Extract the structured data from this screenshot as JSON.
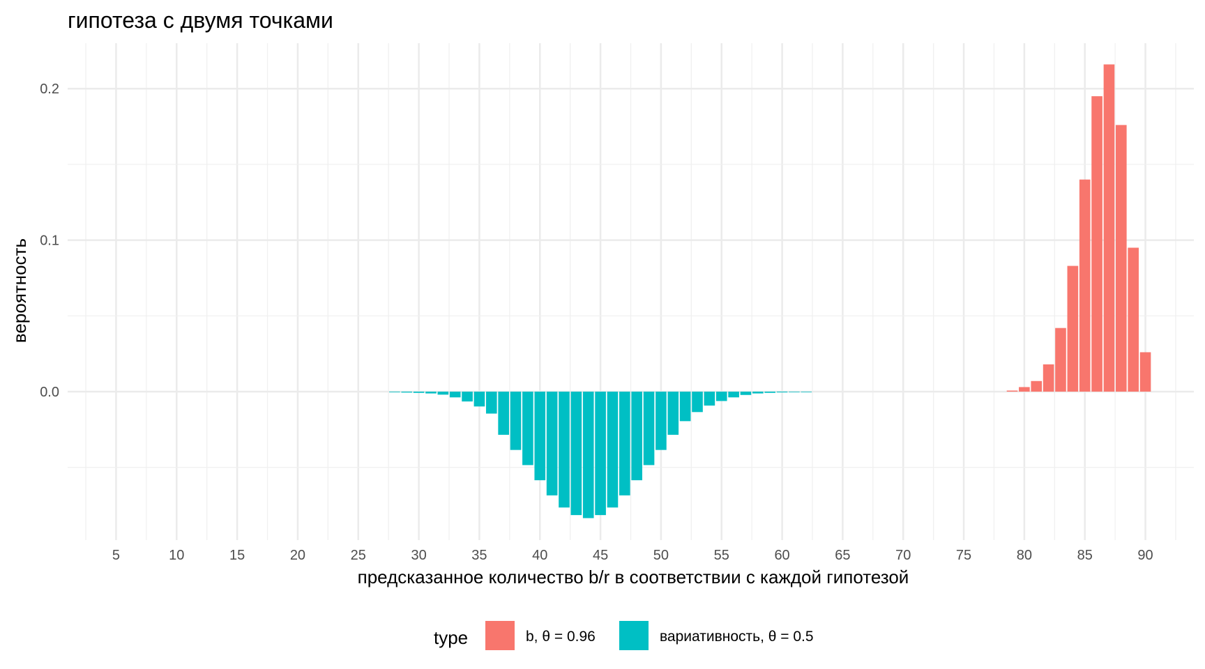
{
  "chart_data": {
    "type": "bar",
    "title": "гипотеза с двумя точками",
    "xlabel": "предсказанное количество b/r в соответствии с каждой гипотезой",
    "ylabel": "вероятность",
    "xlim": [
      1,
      94
    ],
    "ylim": [
      -0.098,
      0.23
    ],
    "x_ticks": [
      5,
      10,
      15,
      20,
      25,
      30,
      35,
      40,
      45,
      50,
      55,
      60,
      65,
      70,
      75,
      80,
      85,
      90
    ],
    "y_ticks": [
      0.0,
      0.1,
      0.2
    ],
    "y_tick_labels": [
      "0.0",
      "0.1",
      "0.2"
    ],
    "grid": true,
    "legend": {
      "title": "type",
      "position": "bottom",
      "entries": [
        {
          "label": "b, θ = 0.96",
          "color": "#F8766D"
        },
        {
          "label": "вариативность, θ = 0.5",
          "color": "#00BFC4"
        }
      ]
    },
    "series": [
      {
        "name": "b, θ = 0.96",
        "color": "#F8766D",
        "x": [
          79,
          80,
          81,
          82,
          83,
          84,
          85,
          86,
          87,
          88,
          89,
          90
        ],
        "values": [
          0.0007,
          0.003,
          0.007,
          0.018,
          0.042,
          0.083,
          0.14,
          0.195,
          0.216,
          0.176,
          0.095,
          0.026
        ]
      },
      {
        "name": "вариативность, θ = 0.5",
        "color": "#00BFC4",
        "x": [
          28,
          29,
          30,
          31,
          32,
          33,
          34,
          35,
          36,
          37,
          38,
          39,
          40,
          41,
          42,
          43,
          44,
          45,
          46,
          47,
          48,
          49,
          50,
          51,
          52,
          53,
          54,
          55,
          56,
          57,
          58,
          59,
          60,
          61,
          62
        ],
        "values": [
          -0.0004,
          -0.0006,
          -0.0008,
          -0.0012,
          -0.002,
          -0.0038,
          -0.0065,
          -0.0098,
          -0.0145,
          -0.0285,
          -0.0385,
          -0.0485,
          -0.0585,
          -0.0685,
          -0.0765,
          -0.0815,
          -0.0835,
          -0.0815,
          -0.0765,
          -0.0685,
          -0.0585,
          -0.0485,
          -0.0385,
          -0.0285,
          -0.0195,
          -0.0135,
          -0.0092,
          -0.0062,
          -0.0038,
          -0.0022,
          -0.0012,
          -0.0008,
          -0.0005,
          -0.0003,
          -0.0002
        ]
      }
    ]
  }
}
